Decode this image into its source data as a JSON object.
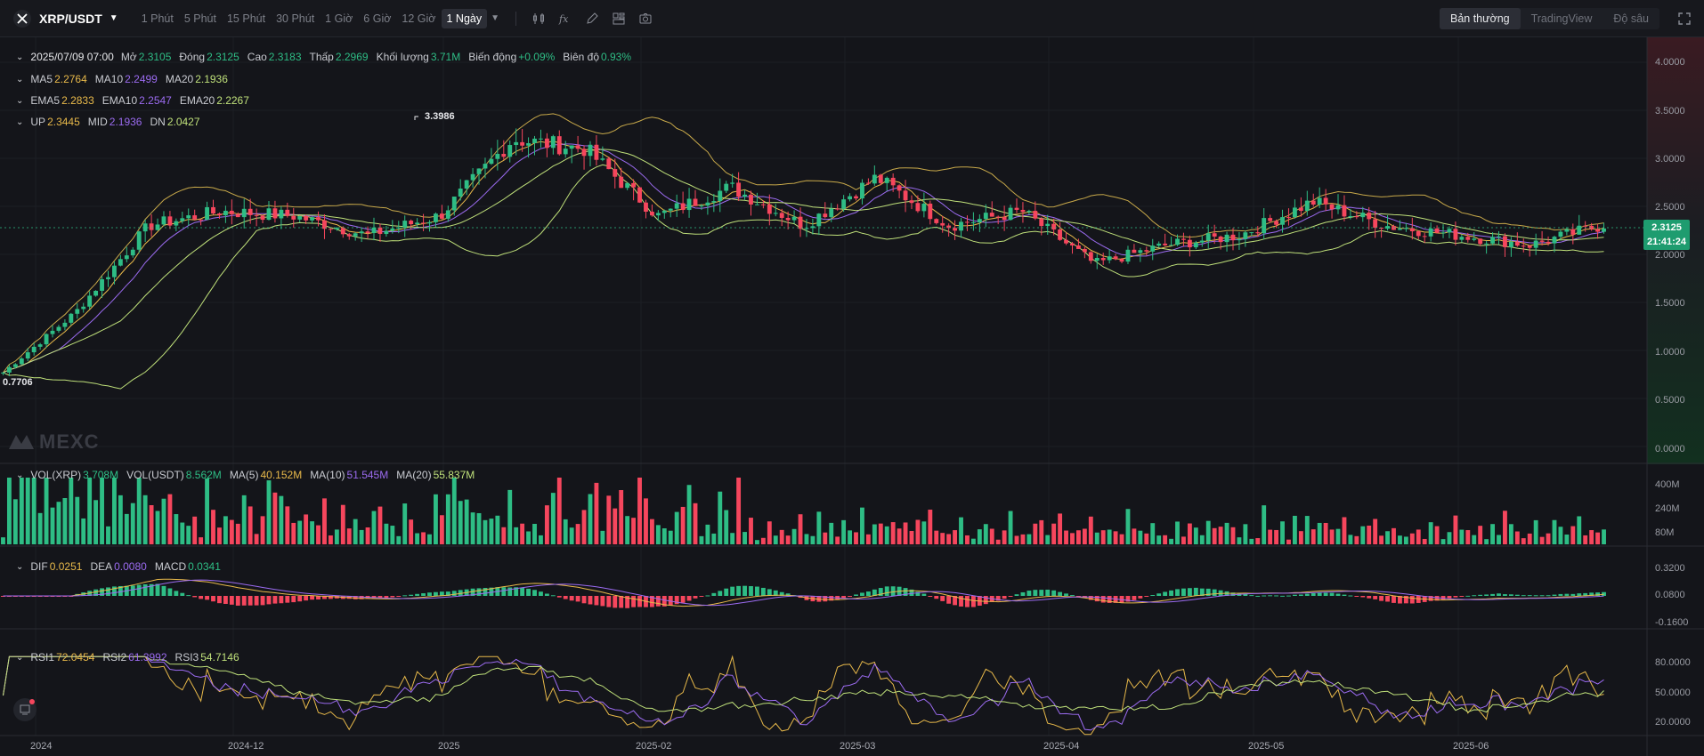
{
  "toolbar": {
    "symbol": "XRP/USDT",
    "intervals": [
      "1 Phút",
      "5 Phút",
      "15 Phút",
      "30 Phút",
      "1 Giờ",
      "6 Giờ",
      "12 Giờ",
      "1 Ngày"
    ],
    "active_interval": "1 Ngày",
    "views": [
      "Bản thường",
      "TradingView",
      "Độ sâu"
    ],
    "active_view": "Bản thường"
  },
  "ohlc": {
    "date": "2025/07/09 07:00",
    "open_label": "Mở",
    "open": "2.3105",
    "close_label": "Đóng",
    "close": "2.3125",
    "high_label": "Cao",
    "high": "2.3183",
    "low_label": "Thấp",
    "low": "2.2969",
    "volume_label": "Khối lượng",
    "volume": "3.71M",
    "change_label": "Biến động",
    "change": "+0.09%",
    "amplitude_label": "Biên độ",
    "amplitude": "0.93%"
  },
  "ma": {
    "ma5": "2.2764",
    "ma10": "2.2499",
    "ma20": "2.1936"
  },
  "ema": {
    "ema5": "2.2833",
    "ema10": "2.2547",
    "ema20": "2.2267"
  },
  "boll": {
    "up": "2.3445",
    "mid": "2.1936",
    "dn": "2.0427"
  },
  "vol": {
    "xrp": "3.708M",
    "usdt": "8.562M",
    "ma5": "40.152M",
    "ma10": "51.545M",
    "ma20": "55.837M"
  },
  "macd": {
    "dif": "0.0251",
    "dea": "0.0080",
    "macd": "0.0341"
  },
  "rsi": {
    "rsi1": "72.0454",
    "rsi2": "61.3992",
    "rsi3": "54.7146"
  },
  "price_tag": {
    "price": "2.3125",
    "countdown": "21:41:24"
  },
  "markers": {
    "high": "3.3986",
    "low": "0.7706"
  },
  "watermark": "MEXC",
  "axes": {
    "price": [
      "4.0000",
      "3.5000",
      "3.0000",
      "2.5000",
      "2.0000",
      "1.5000",
      "1.0000",
      "0.5000",
      "0.0000"
    ],
    "volume": [
      "400M",
      "240M",
      "80M"
    ],
    "macd": [
      "0.3200",
      "0.0800",
      "-0.1600"
    ],
    "rsi": [
      "80.0000",
      "50.0000",
      "20.0000"
    ],
    "dates": [
      "2024",
      "2024-12",
      "2025",
      "2025-02",
      "2025-03",
      "2025-04",
      "2025-05",
      "2025-06"
    ]
  },
  "colors": {
    "up": "#2ebd85",
    "down": "#f6465d",
    "ma5": "#e8b94a",
    "ma10": "#9b6bf0",
    "ma20": "#bfe07a",
    "boll": "#c8a94a",
    "accent": "#1e9c6f"
  },
  "chart_data": {
    "type": "candlestick",
    "x": [
      "2024-11-05",
      "2024-11-15",
      "2024-11-25",
      "2024-12-03",
      "2024-12-15",
      "2024-12-28",
      "2025-01-05",
      "2025-01-16",
      "2025-01-27",
      "2025-02-03",
      "2025-02-15",
      "2025-02-26",
      "2025-03-03",
      "2025-03-15",
      "2025-03-25",
      "2025-04-07",
      "2025-04-20",
      "2025-05-01",
      "2025-05-12",
      "2025-05-25",
      "2025-06-05",
      "2025-06-20",
      "2025-07-09"
    ],
    "close": [
      0.77,
      1.4,
      2.3,
      2.45,
      2.4,
      2.2,
      2.4,
      3.2,
      3.1,
      2.4,
      2.7,
      2.3,
      2.8,
      2.3,
      2.45,
      1.9,
      2.1,
      2.2,
      2.55,
      2.3,
      2.2,
      2.1,
      2.31
    ],
    "ylim": [
      0,
      4.0
    ]
  }
}
